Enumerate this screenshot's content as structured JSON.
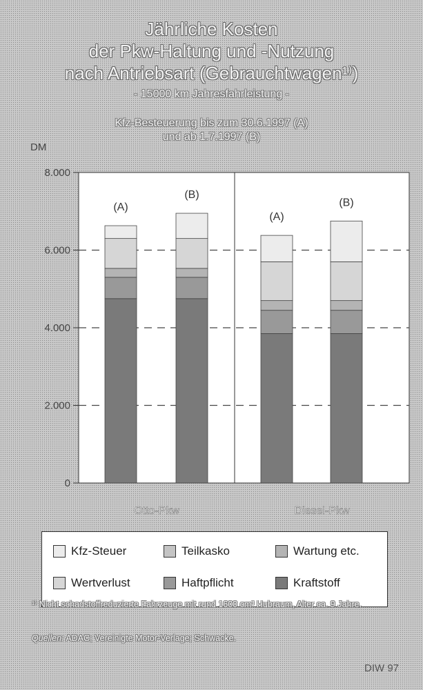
{
  "chart_data": {
    "type": "bar",
    "stacked": true,
    "title": [
      "Jährliche Kosten",
      "der Pkw-Haltung und -Nutzung",
      "nach Antriebsart (Gebrauchtwagen¹⁾)"
    ],
    "subtitle": [
      "- 15000 km Jahresfahrleistung -",
      "Kfz-Besteuerung bis zum 30.6.1997 (A)",
      "und ab 1.7.1997 (B)"
    ],
    "ylabel": "DM",
    "ylim": [
      0,
      8000
    ],
    "yticks": [
      0,
      2000,
      4000,
      6000,
      8000
    ],
    "ytick_labels": [
      "0",
      "2.000",
      "4.000",
      "6.000",
      "8.000"
    ],
    "groups": [
      "Otto-Pkw",
      "Diesel-Pkw"
    ],
    "bar_labels": [
      "(A)",
      "(B)",
      "(A)",
      "(B)"
    ],
    "bar_group": [
      0,
      0,
      1,
      1
    ],
    "series": [
      {
        "name": "Kraftstoff",
        "values": [
          4750,
          4750,
          3850,
          3850
        ],
        "color": "#7a7a7a"
      },
      {
        "name": "Haftpflicht",
        "values": [
          550,
          550,
          600,
          600
        ],
        "color": "#999999"
      },
      {
        "name": "Wartung etc.",
        "values": [
          230,
          230,
          250,
          250
        ],
        "color": "#b4b4b4"
      },
      {
        "name": "Wertverlust",
        "values": [
          770,
          770,
          1000,
          1000
        ],
        "color": "#d6d6d6"
      },
      {
        "name": "Teilkasko",
        "values": 0,
        "color": "#c4c4c4"
      },
      {
        "name": "Kfz-Steuer",
        "values": [
          330,
          650,
          680,
          1050
        ],
        "color": "#ececec"
      }
    ],
    "grid": "dashed horizontal",
    "legend_position": "bottom"
  },
  "legend_items": [
    {
      "label": "Kfz-Steuer",
      "color": "#ececec"
    },
    {
      "label": "Teilkasko",
      "color": "#c4c4c4"
    },
    {
      "label": "Wartung etc.",
      "color": "#b4b4b4"
    },
    {
      "label": "Wertverlust",
      "color": "#d6d6d6"
    },
    {
      "label": "Haftpflicht",
      "color": "#999999"
    },
    {
      "label": "Kraftstoff",
      "color": "#7a7a7a"
    }
  ],
  "footnote": "¹⁾ Nicht schadstoffreduzierte Fahrzeuge mit rund 1600 cm³ Hubraum, Alter ca. 9 Jahre.",
  "sources_label": "Quellen:",
  "sources_text": " ADAC; Vereinigte Motor-Verlage; Schwacke.",
  "credit": "DIW 97"
}
